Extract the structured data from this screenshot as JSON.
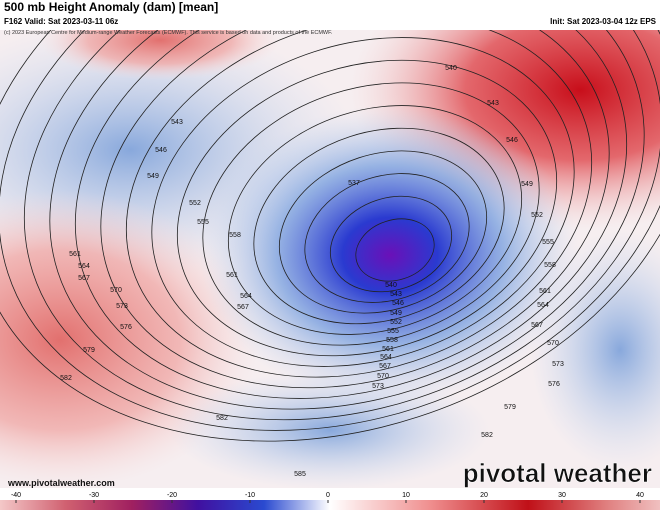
{
  "header": {
    "title": "500 mb Height Anomaly (dam) [mean]",
    "valid": "F162 Valid: Sat 2023-03-11 06z",
    "init": "Init: Sat 2023-03-04 12z EPS",
    "copyright": "(c) 2023 European Centre for Medium-range Weather Forecasts (ECMWF). This service is based on data and products of the ECMWF."
  },
  "contour_labels": [
    540,
    543,
    546,
    549,
    552,
    555,
    537,
    558,
    561,
    561,
    564,
    567,
    570,
    564,
    567,
    573,
    576,
    579,
    582,
    540,
    543,
    546,
    549,
    552,
    555,
    558,
    561,
    564,
    567,
    570,
    573,
    543,
    546,
    549,
    552,
    555,
    558,
    561,
    564,
    567,
    570,
    573,
    576,
    579,
    582,
    582,
    585
  ],
  "colorbar": {
    "ticks": [
      -40,
      -30,
      -20,
      -10,
      0,
      10,
      20,
      30,
      40
    ]
  },
  "footer": {
    "url": "www.pivotalweather.com",
    "brand": "pivotal weather"
  }
}
